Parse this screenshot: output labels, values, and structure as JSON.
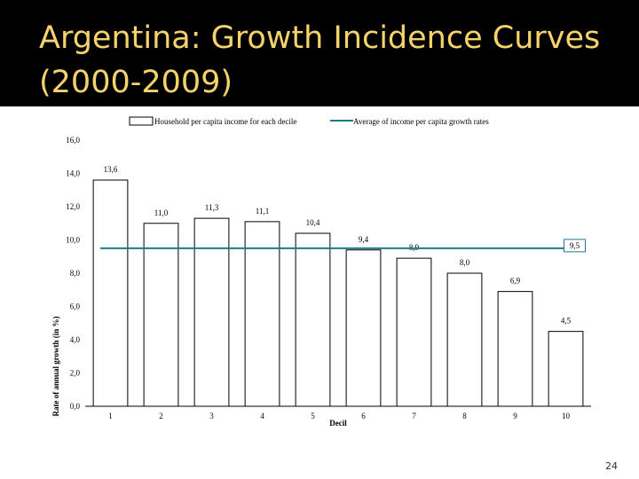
{
  "slide": {
    "title": "Argentina: Growth Incidence Curves (2000-2009)",
    "page_number": "24"
  },
  "colors": {
    "title_bg": "#000000",
    "title_text": "#f5d36b",
    "bar_fill": "#ffffff",
    "bar_stroke": "#000000",
    "average_line": "#1f7a8c"
  },
  "chart_data": {
    "type": "bar",
    "title": "",
    "xlabel": "Decil",
    "ylabel": "Rate of annual growth (in %)",
    "ylim": [
      0,
      16
    ],
    "yticks": [
      "0,0",
      "2,0",
      "4,0",
      "6,0",
      "8,0",
      "10,0",
      "12,0",
      "14,0",
      "16,0"
    ],
    "yticks_values": [
      0,
      2,
      4,
      6,
      8,
      10,
      12,
      14,
      16
    ],
    "categories": [
      "1",
      "2",
      "3",
      "4",
      "5",
      "6",
      "7",
      "8",
      "9",
      "10"
    ],
    "series": [
      {
        "name": "Household per capita income for each decile",
        "values": [
          13.6,
          11.0,
          11.3,
          11.1,
          10.4,
          9.4,
          8.9,
          8.0,
          6.9,
          4.5
        ],
        "labels": [
          "13,6",
          "11,0",
          "11,3",
          "11,1",
          "10,4",
          "9,4",
          "8,9",
          "8,0",
          "6,9",
          "4,5"
        ]
      }
    ],
    "average": {
      "name": "Average of income per capita growth rates",
      "value": 9.5,
      "label": "9,5"
    },
    "legend_position": "top",
    "grid": false
  }
}
